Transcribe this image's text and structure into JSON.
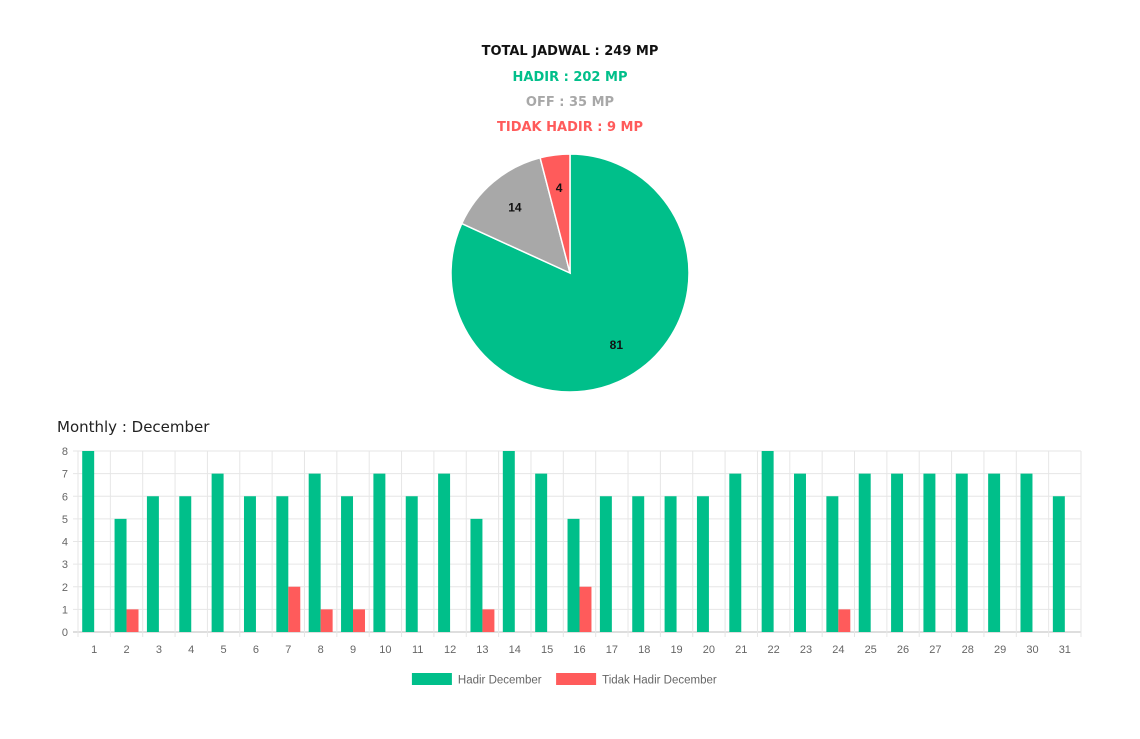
{
  "summary": {
    "total": "TOTAL JADWAL : 249 MP",
    "hadir": "HADIR : 202 MP",
    "off": "OFF : 35 MP",
    "tidak_hadir": "TIDAK HADIR : 9 MP"
  },
  "colors": {
    "hadir": "#00bf8a",
    "off": "#a8a8a8",
    "tidak_hadir": "#ff5b5b",
    "total": "#111111"
  },
  "monthly_title": "Monthly : December",
  "chart_data": [
    {
      "type": "pie",
      "labels": [
        "Hadir",
        "Off",
        "Tidak Hadir"
      ],
      "values": [
        81,
        14,
        4
      ],
      "data_labels": [
        "81",
        "14",
        "4"
      ],
      "colors": [
        "#00bf8a",
        "#a8a8a8",
        "#ff5b5b"
      ]
    },
    {
      "type": "bar",
      "categories": [
        "1",
        "2",
        "3",
        "4",
        "5",
        "6",
        "7",
        "8",
        "9",
        "10",
        "11",
        "12",
        "13",
        "14",
        "15",
        "16",
        "17",
        "18",
        "19",
        "20",
        "21",
        "22",
        "23",
        "24",
        "25",
        "26",
        "27",
        "28",
        "29",
        "30",
        "31"
      ],
      "series": [
        {
          "name": "Hadir December",
          "color": "#00bf8a",
          "values": [
            8,
            5,
            6,
            6,
            7,
            6,
            6,
            7,
            6,
            7,
            6,
            7,
            5,
            8,
            7,
            5,
            6,
            6,
            6,
            6,
            7,
            8,
            7,
            6,
            7,
            7,
            7,
            7,
            7,
            7,
            6
          ]
        },
        {
          "name": "Tidak Hadir December",
          "color": "#ff5b5b",
          "values": [
            0,
            1,
            0,
            0,
            0,
            0,
            2,
            1,
            1,
            0,
            0,
            0,
            1,
            0,
            0,
            2,
            0,
            0,
            0,
            0,
            0,
            0,
            0,
            1,
            0,
            0,
            0,
            0,
            0,
            0,
            0
          ]
        }
      ],
      "ylim": [
        0,
        8
      ],
      "yticks": [
        "0",
        "1",
        "2",
        "3",
        "4",
        "5",
        "6",
        "7",
        "8"
      ],
      "grid": true,
      "legend_position": "bottom"
    }
  ]
}
